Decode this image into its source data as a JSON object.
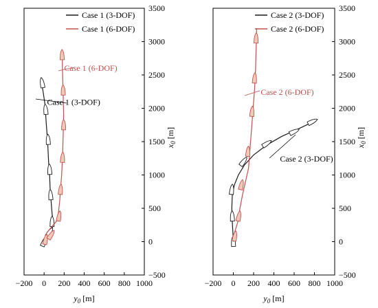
{
  "chart_data": [
    {
      "type": "line",
      "xlabel": "y0 [m]",
      "ylabel": "x0 [m]",
      "xlim": [
        -200,
        1000
      ],
      "ylim": [
        -500,
        3500
      ],
      "xticks": [
        -200,
        0,
        200,
        400,
        600,
        800,
        1000
      ],
      "yticks": [
        -500,
        0,
        500,
        1000,
        1500,
        2000,
        2500,
        3000,
        3500
      ],
      "legend_position": "top-right",
      "series": [
        {
          "name": "Case 1 (3-DOF)",
          "color": "#1a1a1a",
          "points": [
            [
              0,
              0
            ],
            [
              20,
              70
            ],
            [
              55,
              140
            ],
            [
              80,
              210
            ],
            [
              90,
              300
            ],
            [
              80,
              420
            ],
            [
              70,
              600
            ],
            [
              60,
              800
            ],
            [
              55,
              1000
            ],
            [
              45,
              1200
            ],
            [
              35,
              1500
            ],
            [
              20,
              1800
            ],
            [
              10,
              2050
            ],
            [
              -10,
              2250
            ],
            [
              -30,
              2420
            ]
          ],
          "markers": [
            [
              0,
              0
            ],
            [
              55,
              140
            ],
            [
              80,
              300
            ],
            [
              65,
              700
            ],
            [
              55,
              1080
            ],
            [
              40,
              1530
            ],
            [
              15,
              1980
            ],
            [
              -20,
              2380
            ]
          ]
        },
        {
          "name": "Case 1 (6-DOF)",
          "color": "#c0504d",
          "points": [
            [
              0,
              0
            ],
            [
              10,
              70
            ],
            [
              30,
              140
            ],
            [
              80,
              230
            ],
            [
              120,
              300
            ],
            [
              140,
              400
            ],
            [
              155,
              600
            ],
            [
              165,
              800
            ],
            [
              175,
              1000
            ],
            [
              185,
              1300
            ],
            [
              190,
              1600
            ],
            [
              195,
              1900
            ],
            [
              190,
              2200
            ],
            [
              185,
              2500
            ],
            [
              180,
              2850
            ]
          ],
          "markers": [
            [
              15,
              30
            ],
            [
              70,
              100
            ],
            [
              150,
              380
            ],
            [
              165,
              780
            ],
            [
              185,
              1260
            ],
            [
              195,
              1750
            ],
            [
              190,
              2270
            ],
            [
              180,
              2800
            ]
          ]
        }
      ],
      "annotations": [
        {
          "text": "Case 1 (6-DOF)",
          "x": 200,
          "y": 2560,
          "color": "#c0504d"
        },
        {
          "text": "Case 1 (3-DOF)",
          "x": 30,
          "y": 2050,
          "color": "#000000"
        }
      ]
    },
    {
      "type": "line",
      "xlabel": "y0 [m]",
      "ylabel": "x0 [m]",
      "xlim": [
        -200,
        1000
      ],
      "ylim": [
        -500,
        3500
      ],
      "xticks": [
        -200,
        0,
        200,
        400,
        600,
        800,
        1000
      ],
      "yticks": [
        -500,
        0,
        500,
        1000,
        1500,
        2000,
        2500,
        3000,
        3500
      ],
      "legend_position": "top-right",
      "series": [
        {
          "name": "Case 2 (3-DOF)",
          "color": "#1a1a1a",
          "points": [
            [
              0,
              0
            ],
            [
              -5,
              150
            ],
            [
              -10,
              300
            ],
            [
              -15,
              500
            ],
            [
              -10,
              700
            ],
            [
              10,
              850
            ],
            [
              50,
              1000
            ],
            [
              110,
              1150
            ],
            [
              200,
              1300
            ],
            [
              330,
              1450
            ],
            [
              480,
              1580
            ],
            [
              640,
              1690
            ],
            [
              790,
              1800
            ]
          ],
          "markers": [
            [
              0,
              0
            ],
            [
              -10,
              380
            ],
            [
              -15,
              780
            ],
            [
              100,
              1200
            ],
            [
              330,
              1470
            ],
            [
              600,
              1650
            ],
            [
              780,
              1800
            ]
          ]
        },
        {
          "name": "Case 2 (6-DOF)",
          "color": "#c0504d",
          "points": [
            [
              0,
              0
            ],
            [
              5,
              100
            ],
            [
              25,
              200
            ],
            [
              45,
              300
            ],
            [
              65,
              500
            ],
            [
              90,
              700
            ],
            [
              120,
              900
            ],
            [
              150,
              1100
            ],
            [
              165,
              1400
            ],
            [
              180,
              1700
            ],
            [
              195,
              2000
            ],
            [
              210,
              2300
            ],
            [
              220,
              2600
            ],
            [
              225,
              2900
            ],
            [
              230,
              3200
            ]
          ],
          "markers": [
            [
              15,
              80
            ],
            [
              55,
              380
            ],
            [
              80,
              850
            ],
            [
              145,
              1350
            ],
            [
              185,
              1950
            ],
            [
              210,
              2450
            ],
            [
              225,
              3050
            ]
          ]
        }
      ],
      "annotations": [
        {
          "text": "Case 2 (6-DOF)",
          "x": 270,
          "y": 2200,
          "color": "#c0504d"
        },
        {
          "text": "Case 2 (3-DOF)",
          "x": 460,
          "y": 1200,
          "color": "#000000"
        }
      ]
    }
  ]
}
